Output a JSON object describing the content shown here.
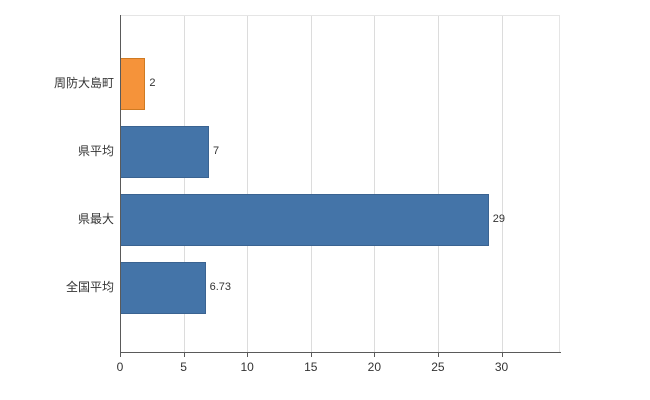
{
  "chart_data": {
    "type": "bar",
    "orientation": "horizontal",
    "title": "",
    "xlabel": "",
    "ylabel": "",
    "categories": [
      "周防大島町",
      "県平均",
      "県最大",
      "全国平均"
    ],
    "values": [
      2,
      7,
      29,
      6.73
    ],
    "value_labels": [
      "2",
      "7",
      "29",
      "6.73"
    ],
    "bar_colors": [
      "#f5933a",
      "#4474a8",
      "#4474a8",
      "#4474a8"
    ],
    "bar_border_colors": [
      "#cf7a22",
      "#3a6391",
      "#3a6391",
      "#3a6391"
    ],
    "xlim": [
      0,
      34.6
    ],
    "x_ticks": [
      "0",
      "5",
      "10",
      "15",
      "20",
      "25",
      "30"
    ],
    "grid": true,
    "legend": "none",
    "background_color": "#ffffff",
    "gridline_color": "#dcdcdc",
    "axis_color": "#5a5a5a",
    "text_color": "#333333"
  }
}
